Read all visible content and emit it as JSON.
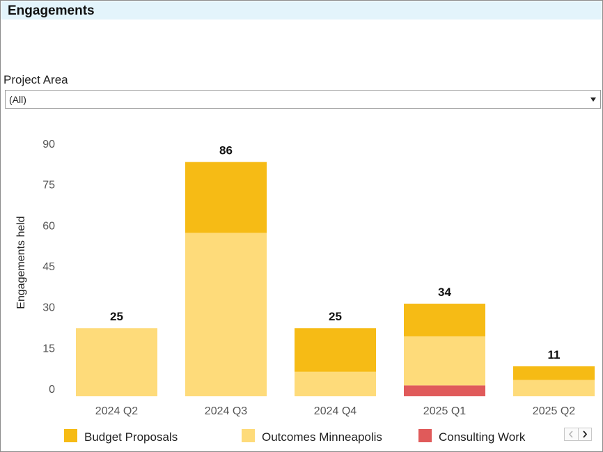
{
  "header": {
    "title": "Engagements"
  },
  "filter": {
    "label": "Project Area",
    "value": "(All)"
  },
  "chart_data": {
    "type": "bar",
    "stacked": true,
    "categories": [
      "2024 Q2",
      "2024 Q3",
      "2024 Q4",
      "2025 Q1",
      "2025 Q2"
    ],
    "series": [
      {
        "name": "Consulting Work",
        "color": "#e05a5a",
        "values": [
          0,
          0,
          0,
          4,
          0
        ]
      },
      {
        "name": "Outcomes Minneapolis",
        "color": "#fedb7a",
        "values": [
          25,
          60,
          9,
          18,
          6
        ]
      },
      {
        "name": "Budget Proposals",
        "color": "#f6bb15",
        "values": [
          0,
          26,
          16,
          12,
          5
        ]
      }
    ],
    "totals": [
      25,
      86,
      25,
      34,
      11
    ],
    "ylabel": "Engagements held",
    "xlabel": "",
    "ylim": [
      0,
      90
    ],
    "yticks": [
      0,
      15,
      30,
      45,
      60,
      75,
      90
    ],
    "grid": false,
    "legend": {
      "position": "bottom",
      "items": [
        {
          "name": "Budget Proposals",
          "color": "#f6bb15"
        },
        {
          "name": "Outcomes Minneapolis",
          "color": "#fedb7a"
        },
        {
          "name": "Consulting Work",
          "color": "#e05a5a"
        }
      ]
    }
  },
  "legend_nav": {
    "prev_icon": "chevron-left-icon",
    "next_icon": "chevron-right-icon"
  }
}
